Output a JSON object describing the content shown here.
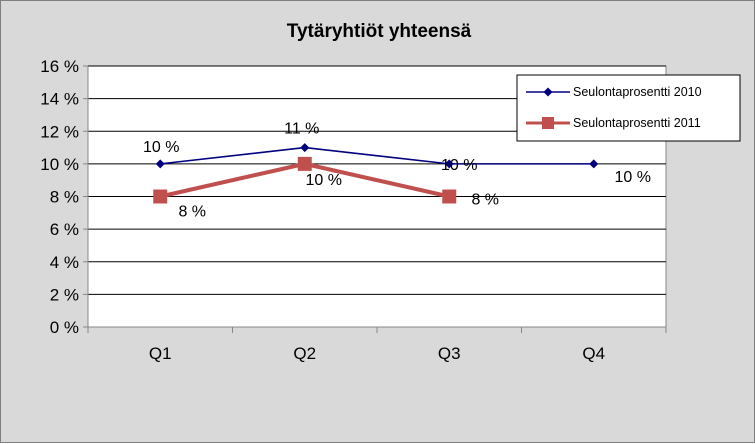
{
  "chart_data": {
    "type": "line",
    "title": "Tytäryhtiöt yhteensä",
    "categories": [
      "Q1",
      "Q2",
      "Q3",
      "Q4"
    ],
    "ylim": [
      0,
      16
    ],
    "yticks": [
      0,
      2,
      4,
      6,
      8,
      10,
      12,
      14,
      16
    ],
    "ytick_labels": [
      "0 %",
      "2 %",
      "4 %",
      "6 %",
      "8 %",
      "10 %",
      "12 %",
      "14 %",
      "16 %"
    ],
    "grid": true,
    "legend_position": "top-right",
    "series": [
      {
        "name": "Seulontaprosentti  2010",
        "values": [
          10,
          11,
          10,
          10
        ],
        "labels": [
          "10 %",
          "11 %",
          "10 %",
          "10 %"
        ],
        "color": "#000080",
        "marker": "diamond"
      },
      {
        "name": "Seulontaprosentti  2011",
        "values": [
          8,
          10,
          8,
          null
        ],
        "labels": [
          "8 %",
          "10 %",
          "8 %",
          null
        ],
        "color": "#c0504d",
        "marker": "square"
      }
    ]
  },
  "colors": {
    "background": "#d9d9d9",
    "plot_area": "#ffffff",
    "grid": "#000000"
  }
}
